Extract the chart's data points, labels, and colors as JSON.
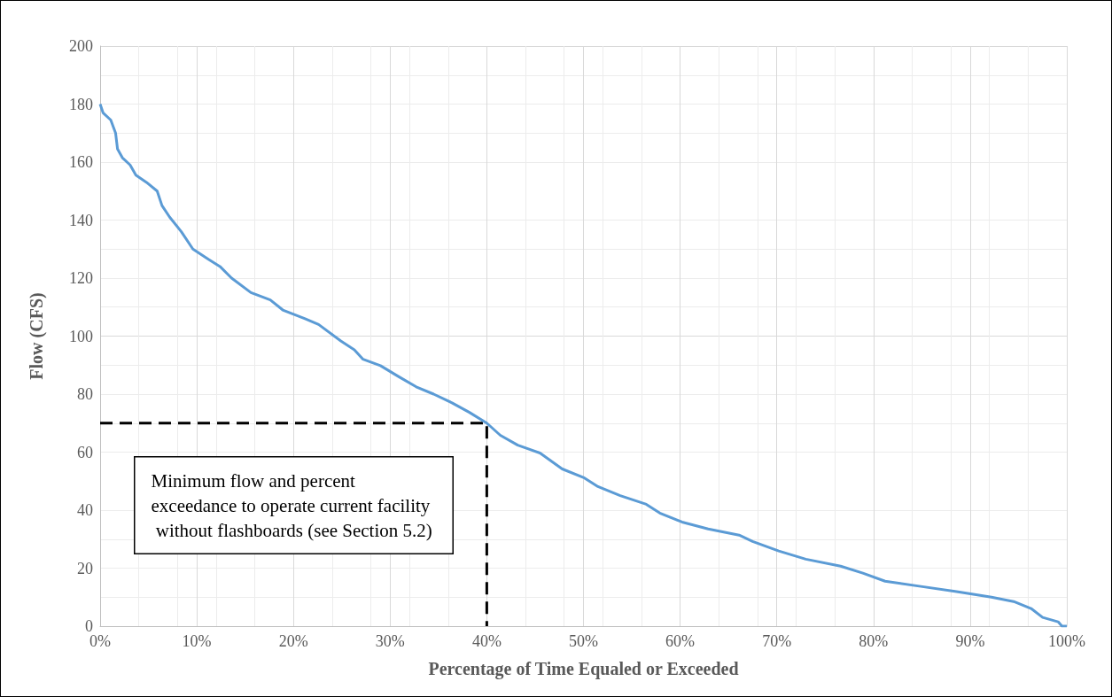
{
  "chart_data": {
    "type": "line",
    "xlabel": "Percentage of Time Equaled or Exceeded",
    "ylabel": "Flow (CFS)",
    "series": [
      {
        "color": "#5b9bd5",
        "x": [
          0,
          0.3,
          1.1,
          1.6,
          1.8,
          2.3,
          3.1,
          3.7,
          4.8,
          5.9,
          6.4,
          7.2,
          8.4,
          9.6,
          11.2,
          12.4,
          13.6,
          15.6,
          17.6,
          18.9,
          21.2,
          22.6,
          24.9,
          26.3,
          27.2,
          29,
          30.9,
          32.7,
          34.5,
          36.4,
          38.2,
          40,
          41.4,
          43.2,
          45.5,
          47.8,
          50.1,
          51.5,
          53.8,
          56.5,
          57.9,
          60.2,
          62.9,
          66.1,
          67.5,
          70.2,
          73,
          76.6,
          78.9,
          81.2,
          84.9,
          88.6,
          92.2,
          94.5,
          96.3,
          97.5,
          99.1,
          99.5,
          100
        ],
        "values": [
          180,
          177,
          174.5,
          170,
          164.5,
          161.5,
          159,
          155.5,
          153,
          150,
          145,
          141,
          136,
          130,
          126.5,
          124,
          120,
          115,
          112.5,
          109,
          106,
          104,
          98.3,
          95.3,
          92,
          89.8,
          86,
          82.5,
          80,
          77,
          73.7,
          70,
          65.8,
          62.4,
          59.7,
          54.2,
          51.1,
          48.1,
          45,
          42,
          39,
          35.9,
          33.5,
          31.4,
          29.2,
          25.9,
          23.1,
          20.7,
          18.3,
          15.5,
          13.7,
          11.9,
          10,
          8.5,
          6.1,
          3,
          1.5,
          0,
          0
        ]
      },
      {
        "color": "#000000",
        "line_style": "dashed",
        "x": [
          0,
          40,
          40
        ],
        "values": [
          70,
          70,
          0
        ]
      }
    ],
    "annotations": [
      "Minimum flow and percent exceedance to operate current facility without flashboards (see Section 5.2)"
    ],
    "xlim": [
      0,
      100
    ],
    "xticks": [
      {
        "value": 0,
        "label": "0%"
      },
      {
        "value": 10,
        "label": "10%"
      },
      {
        "value": 20,
        "label": "20%"
      },
      {
        "value": 30,
        "label": "30%"
      },
      {
        "value": 40,
        "label": "40%"
      },
      {
        "value": 50,
        "label": "50%"
      },
      {
        "value": 60,
        "label": "60%"
      },
      {
        "value": 70,
        "label": "70%"
      },
      {
        "value": 80,
        "label": "80%"
      },
      {
        "value": 90,
        "label": "90%"
      },
      {
        "value": 100,
        "label": "100%"
      }
    ],
    "ylim": [
      0,
      200
    ],
    "yticks": [
      0,
      20,
      40,
      60,
      80,
      100,
      120,
      140,
      160,
      180,
      200
    ],
    "grid": true,
    "marker": "none"
  }
}
